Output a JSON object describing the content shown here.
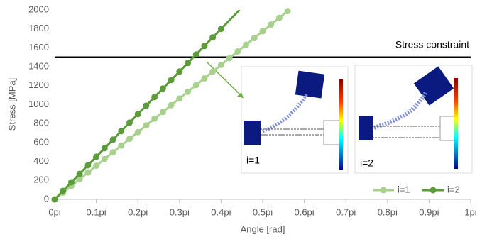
{
  "chart_data": {
    "type": "line",
    "xlabel": "Angle [rad]",
    "ylabel": "Stress [MPa]",
    "xlim": [
      0,
      1
    ],
    "ylim": [
      0,
      2000
    ],
    "xticks": [
      {
        "value": 0,
        "label": "0pi"
      },
      {
        "value": 0.1,
        "label": "0.1pi"
      },
      {
        "value": 0.2,
        "label": "0.2pi"
      },
      {
        "value": 0.3,
        "label": "0.3pi"
      },
      {
        "value": 0.4,
        "label": "0.4pi"
      },
      {
        "value": 0.5,
        "label": "0.5pi"
      },
      {
        "value": 0.6,
        "label": "0.6pi"
      },
      {
        "value": 0.7,
        "label": "0.7pi"
      },
      {
        "value": 0.8,
        "label": "0.8pi"
      },
      {
        "value": 0.9,
        "label": "0.9pi"
      },
      {
        "value": 1,
        "label": "1pi"
      }
    ],
    "yticks": [
      0,
      200,
      400,
      600,
      800,
      1000,
      1200,
      1400,
      1600,
      1800,
      2000
    ],
    "grid": false,
    "legend": "bottom-right",
    "series": [
      {
        "name": "i=1",
        "color": "#a9d18e",
        "x": [
          0,
          0.02,
          0.04,
          0.06,
          0.08,
          0.1,
          0.12,
          0.14,
          0.16,
          0.18,
          0.2,
          0.22,
          0.24,
          0.26,
          0.28,
          0.3,
          0.32,
          0.34,
          0.36,
          0.38,
          0.4,
          0.42,
          0.44,
          0.46,
          0.48,
          0.5,
          0.52,
          0.54,
          0.56
        ],
        "values": [
          0,
          71,
          142,
          213,
          284,
          355,
          426,
          497,
          568,
          639,
          710,
          781,
          852,
          923,
          994,
          1065,
          1136,
          1207,
          1278,
          1349,
          1420,
          1491,
          1562,
          1633,
          1704,
          1775,
          1846,
          1917,
          1988
        ]
      },
      {
        "name": "i=2",
        "color": "#5b9b3a",
        "x": [
          0,
          0.02,
          0.04,
          0.06,
          0.08,
          0.1,
          0.12,
          0.14,
          0.16,
          0.18,
          0.2,
          0.22,
          0.24,
          0.26,
          0.28,
          0.3,
          0.32,
          0.34,
          0.36,
          0.38,
          0.4
        ],
        "values": [
          0,
          90,
          180,
          270,
          360,
          450,
          540,
          630,
          720,
          810,
          900,
          990,
          1080,
          1170,
          1260,
          1350,
          1440,
          1530,
          1620,
          1710,
          1800
        ]
      }
    ],
    "constraint": {
      "value": 1500,
      "label": "Stress constraint",
      "color": "#000000"
    },
    "insets": [
      "i=1",
      "i=2"
    ]
  }
}
